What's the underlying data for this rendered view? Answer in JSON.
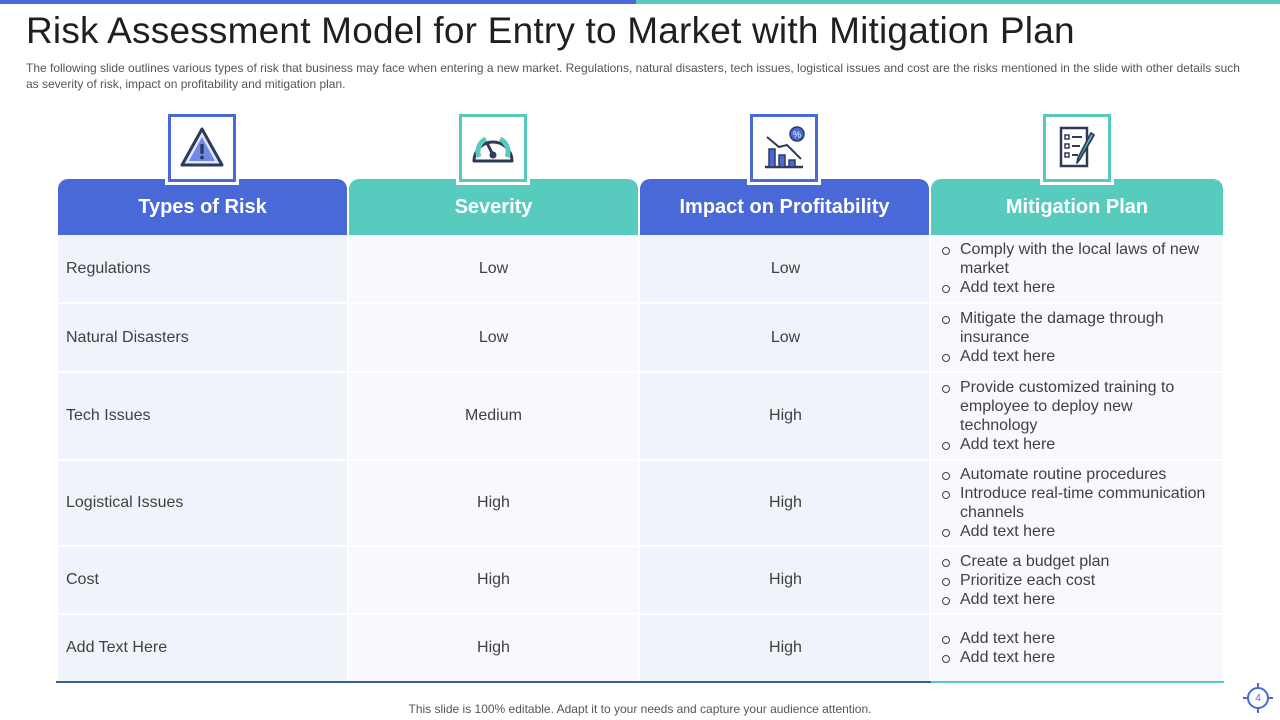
{
  "title": "Risk Assessment Model for Entry to Market with Mitigation Plan",
  "subtitle": "The following  slide outlines various  types of risk that business may face when  entering a new market. Regulations, natural  disasters, tech issues, logistical issues and cost are the risks mentioned in the slide with other details such as severity  of risk, impact on profitability and mitigation plan.",
  "columns": [
    {
      "label": "Types of Risk",
      "icon": "warning-icon",
      "color": "#4a69d9"
    },
    {
      "label": "Severity",
      "icon": "gauge-icon",
      "color": "#58cbbf"
    },
    {
      "label": "Impact on Profitability",
      "icon": "declining-chart-icon",
      "color": "#4a69d9"
    },
    {
      "label": "Mitigation  Plan",
      "icon": "checklist-icon",
      "color": "#58cbbf"
    }
  ],
  "rows": [
    {
      "risk": "Regulations",
      "severity": "Low",
      "impact": "Low",
      "plan": [
        "Comply with the local laws of new market",
        "Add text here"
      ]
    },
    {
      "risk": "Natural  Disasters",
      "severity": "Low",
      "impact": "Low",
      "plan": [
        "Mitigate the damage through insurance",
        "Add text here"
      ]
    },
    {
      "risk": "Tech Issues",
      "severity": "Medium",
      "impact": "High",
      "plan": [
        "Provide customized training to employee to deploy new technology",
        "Add text here"
      ]
    },
    {
      "risk": "Logistical Issues",
      "severity": "High",
      "impact": "High",
      "plan": [
        "Automate routine procedures",
        "Introduce  real-time communication channels",
        "Add text here"
      ]
    },
    {
      "risk": "Cost",
      "severity": "High",
      "impact": "High",
      "plan": [
        "Create a budget plan",
        "Prioritize each cost",
        "Add text here"
      ]
    },
    {
      "risk": "Add Text Here",
      "severity": "High",
      "impact": "High",
      "plan": [
        "Add text here",
        "Add text here"
      ]
    }
  ],
  "footer": "This slide is 100% editable. Adapt it to your  needs and capture your audience attention.",
  "page_number": "4"
}
